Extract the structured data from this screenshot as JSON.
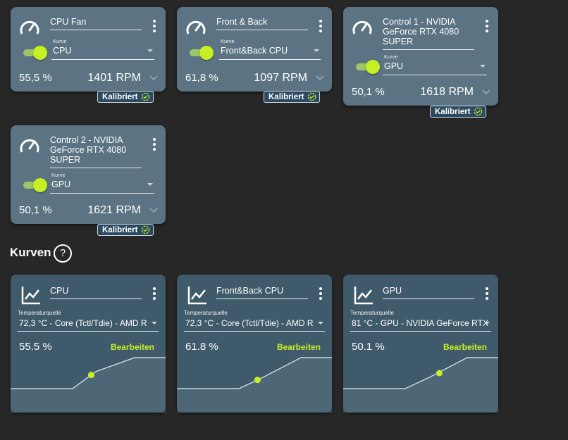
{
  "colors": {
    "background": "#272727",
    "card": "#5b7382",
    "curve_card": "#3f5a6b",
    "accent": "#c6f024",
    "badge": "#2b4a62"
  },
  "controls": [
    {
      "name_lines": [
        "CPU Fan"
      ],
      "curve_label": "Kurve",
      "curve": "CPU",
      "percent": "55,5 %",
      "rpm": "1401 RPM",
      "badge": "Kalibriert",
      "icon": "speedometer-icon"
    },
    {
      "name_lines": [
        "Front & Back"
      ],
      "curve_label": "Kurve",
      "curve": "Front&Back CPU",
      "percent": "61,8 %",
      "rpm": "1097 RPM",
      "badge": "Kalibriert",
      "icon": "speedometer-icon"
    },
    {
      "name_lines": [
        "Control 1 - NVIDIA",
        "GeForce RTX 4080",
        "SUPER"
      ],
      "curve_label": "Kurve",
      "curve": "GPU",
      "percent": "50,1 %",
      "rpm": "1618 RPM",
      "badge": "Kalibriert",
      "icon": "speedometer-icon"
    },
    {
      "name_lines": [
        "Control 2 - NVIDIA",
        "GeForce RTX 4080",
        "SUPER"
      ],
      "curve_label": "Kurve",
      "curve": "GPU",
      "percent": "50,1 %",
      "rpm": "1621 RPM",
      "badge": "Kalibriert",
      "icon": "speedometer-icon"
    }
  ],
  "section": {
    "title": "Kurven",
    "help": "?"
  },
  "curves": [
    {
      "name": "CPU",
      "source_label": "Temperaturquelle",
      "source": "72,3 °C - Core (Tctl/Tdie) - AMD R",
      "percent": "55.5 %",
      "edit": "Bearbeiten",
      "icon": "line-chart-icon",
      "curve_points": [
        [
          0,
          0
        ],
        [
          40,
          0
        ],
        [
          55,
          0.55
        ],
        [
          80,
          1
        ],
        [
          100,
          1
        ]
      ],
      "current": [
        52,
        0.44
      ]
    },
    {
      "name": "Front&Back CPU",
      "source_label": "Temperaturquelle",
      "source": "72,3 °C - Core (Tctl/Tdie) - AMD R",
      "percent": "61.8 %",
      "edit": "Bearbeiten",
      "icon": "line-chart-icon",
      "curve_points": [
        [
          0,
          0
        ],
        [
          40,
          0
        ],
        [
          55,
          0.35
        ],
        [
          80,
          1
        ],
        [
          100,
          1
        ]
      ],
      "current": [
        52,
        0.28
      ]
    },
    {
      "name": "GPU",
      "source_label": "Temperaturquelle",
      "source": "81 °C - GPU - NVIDIA GeForce RTX",
      "percent": "50.1 %",
      "edit": "Bearbeiten",
      "icon": "line-chart-icon",
      "curve_points": [
        [
          0,
          0
        ],
        [
          40,
          0
        ],
        [
          55,
          0.35
        ],
        [
          80,
          1
        ],
        [
          100,
          1
        ]
      ],
      "current": [
        62,
        0.5
      ]
    }
  ]
}
